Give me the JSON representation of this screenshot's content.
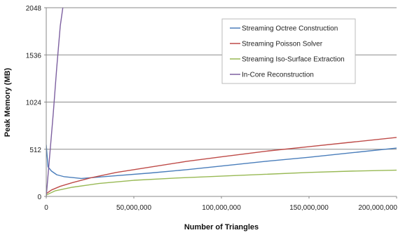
{
  "chart_data": {
    "type": "line",
    "title": "",
    "xlabel": "Number of Triangles",
    "ylabel": "Peak Memory (MB)",
    "xlim": [
      0,
      200000000
    ],
    "ylim": [
      0,
      2048
    ],
    "x_ticks": [
      0,
      50000000,
      100000000,
      150000000,
      200000000
    ],
    "x_tick_labels": [
      "0",
      "50,000,000",
      "100,000,000",
      "150,000,000",
      "200,000,000"
    ],
    "y_ticks": [
      0,
      512,
      1024,
      1536,
      2048
    ],
    "y_tick_labels": [
      "0",
      "512",
      "1024",
      "1536",
      "2048"
    ],
    "grid": "horizontal",
    "legend_position": "top-right",
    "series": [
      {
        "name": "Streaming Octree Construction",
        "color": "#4a7ebb",
        "points": [
          [
            0,
            560
          ],
          [
            1000000,
            320
          ],
          [
            3000000,
            275
          ],
          [
            6000000,
            235
          ],
          [
            10000000,
            215
          ],
          [
            20000000,
            195
          ],
          [
            40000000,
            225
          ],
          [
            60000000,
            255
          ],
          [
            80000000,
            290
          ],
          [
            100000000,
            330
          ],
          [
            125000000,
            380
          ],
          [
            150000000,
            425
          ],
          [
            175000000,
            475
          ],
          [
            200000000,
            525
          ]
        ]
      },
      {
        "name": "Streaming Poisson Solver",
        "color": "#be4b48",
        "points": [
          [
            0,
            30
          ],
          [
            3000000,
            70
          ],
          [
            8000000,
            110
          ],
          [
            15000000,
            150
          ],
          [
            25000000,
            200
          ],
          [
            40000000,
            260
          ],
          [
            60000000,
            320
          ],
          [
            80000000,
            380
          ],
          [
            100000000,
            430
          ],
          [
            125000000,
            490
          ],
          [
            150000000,
            540
          ],
          [
            175000000,
            590
          ],
          [
            200000000,
            640
          ]
        ]
      },
      {
        "name": "Streaming Iso-Surface Extraction",
        "color": "#98b954",
        "points": [
          [
            0,
            15
          ],
          [
            5000000,
            60
          ],
          [
            15000000,
            100
          ],
          [
            30000000,
            140
          ],
          [
            50000000,
            175
          ],
          [
            75000000,
            200
          ],
          [
            100000000,
            220
          ],
          [
            125000000,
            240
          ],
          [
            150000000,
            260
          ],
          [
            175000000,
            275
          ],
          [
            200000000,
            285
          ]
        ]
      },
      {
        "name": "In-Core Reconstruction",
        "color": "#7d60a0",
        "points": [
          [
            0,
            0
          ],
          [
            2000000,
            450
          ],
          [
            4000000,
            900
          ],
          [
            6000000,
            1400
          ],
          [
            8000000,
            1850
          ],
          [
            10000000,
            2120
          ]
        ]
      }
    ]
  }
}
